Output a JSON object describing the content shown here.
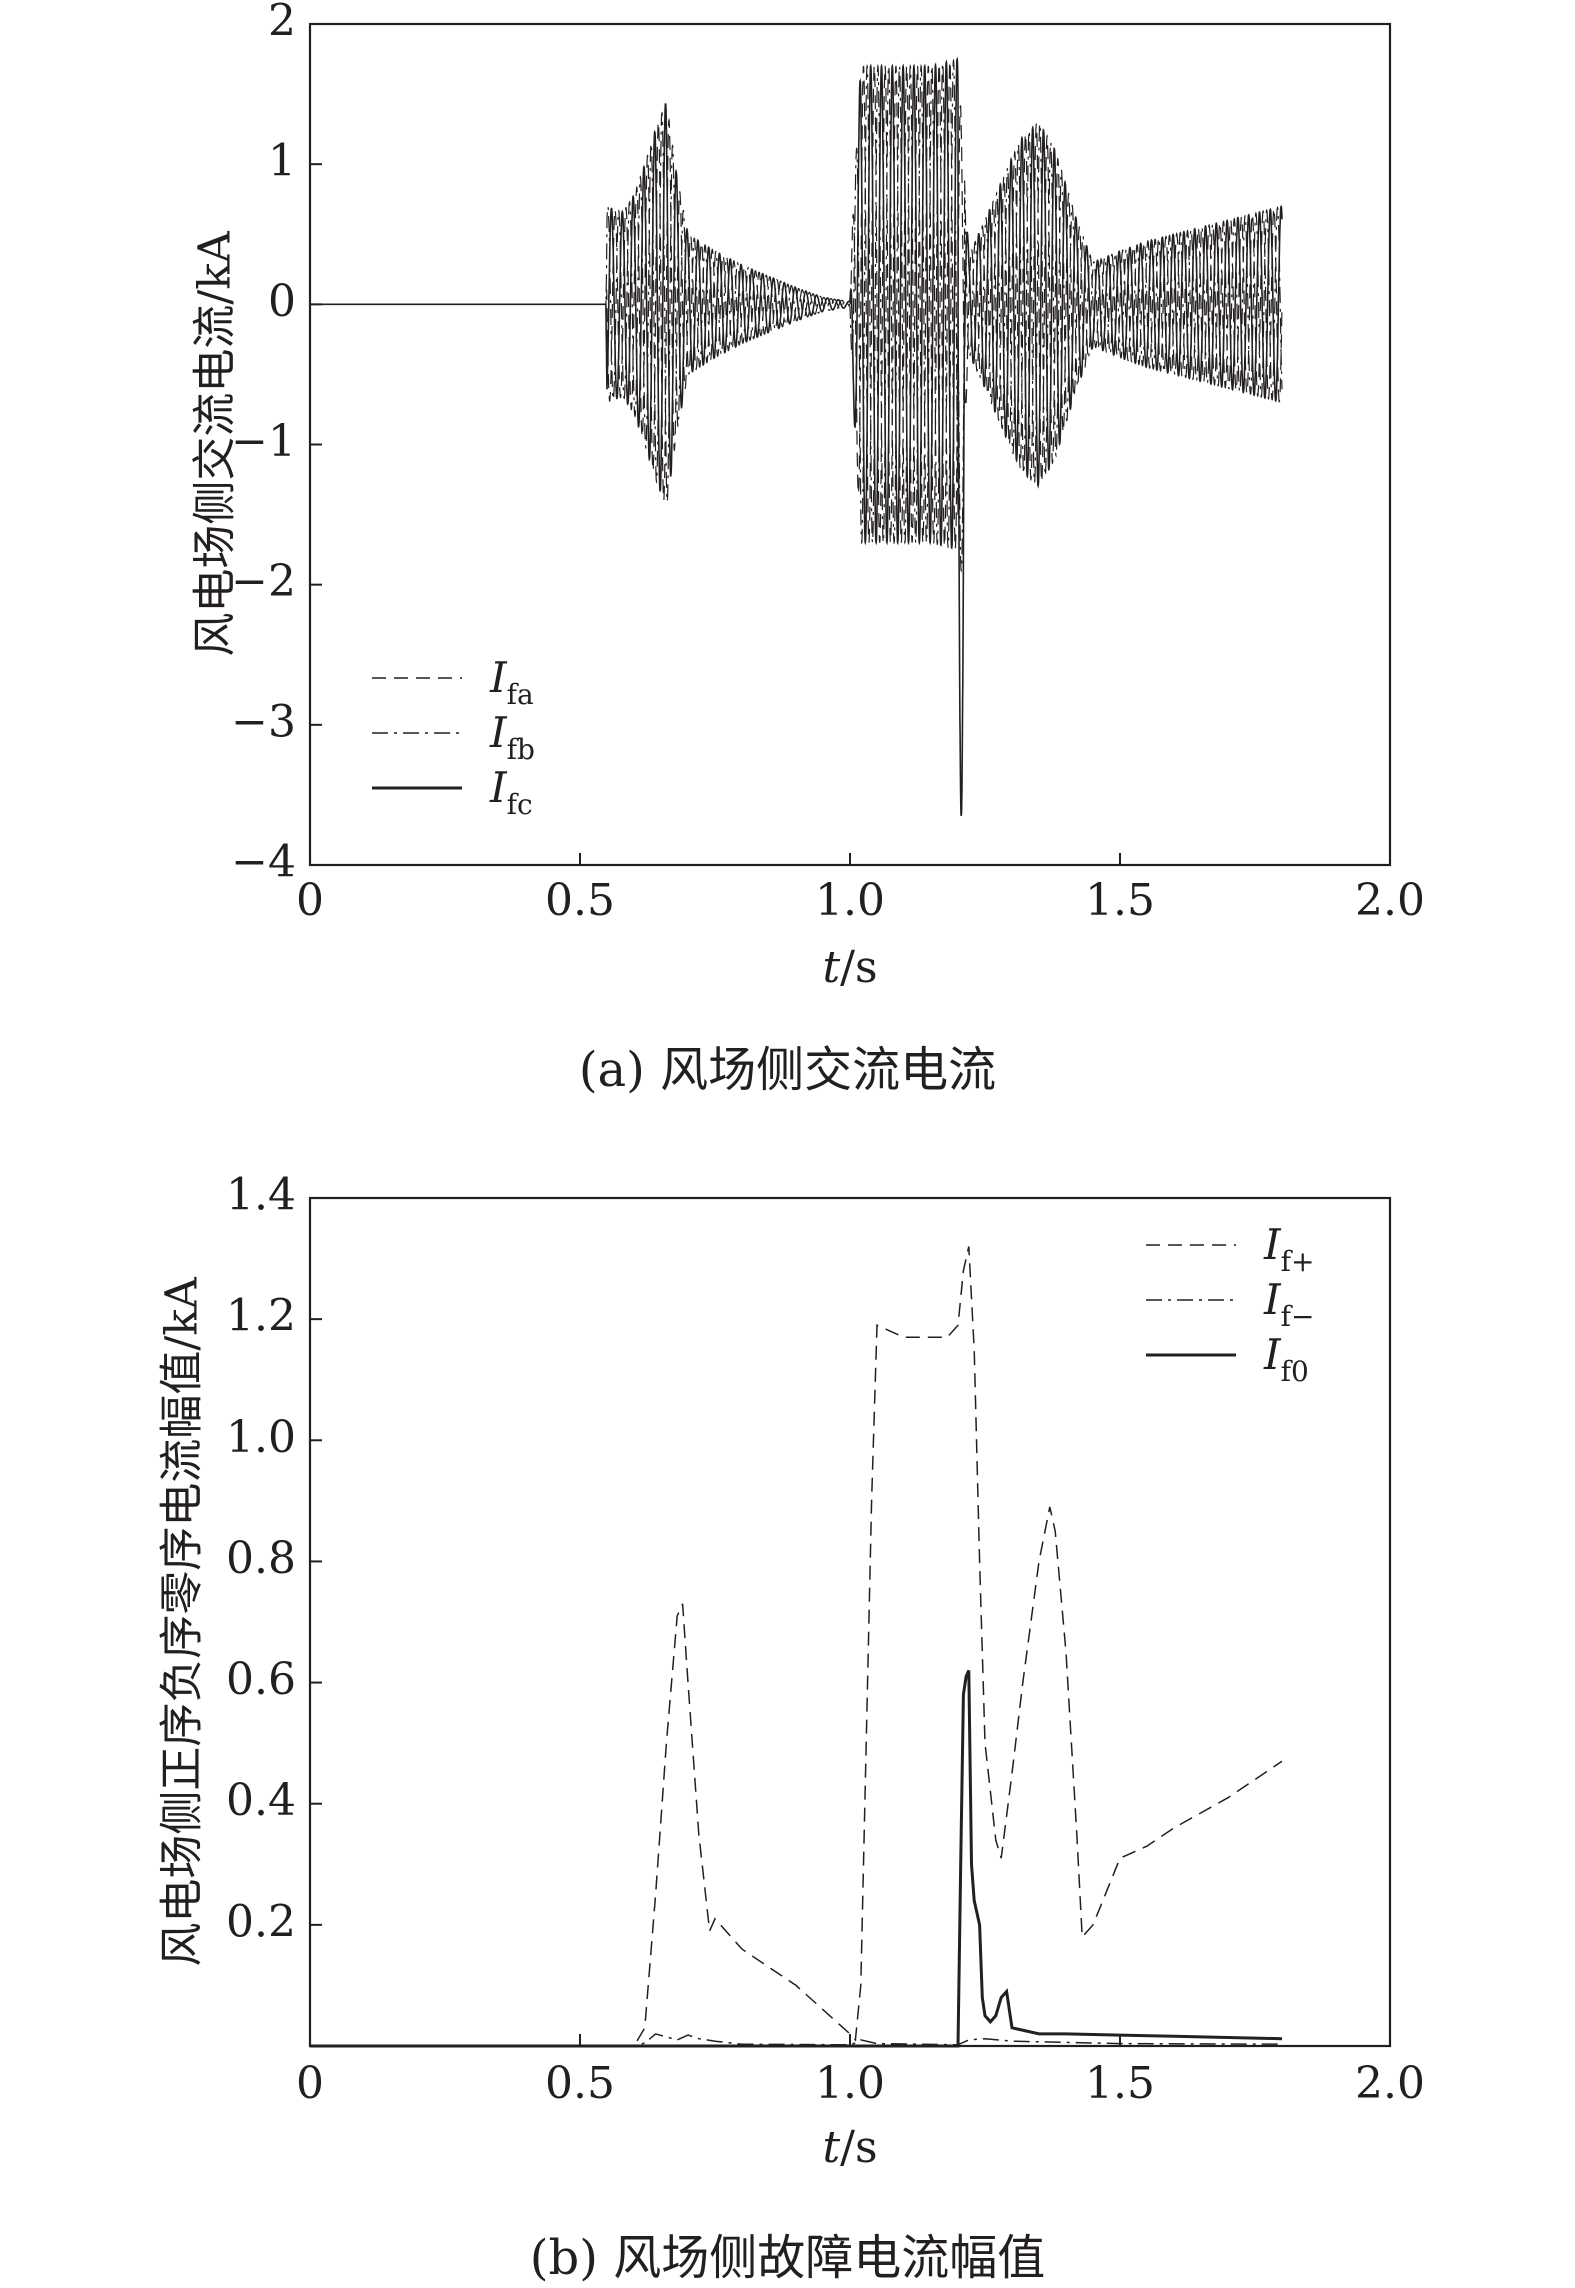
{
  "chart_data": [
    {
      "type": "line",
      "caption": "(a) 风场侧交流电流",
      "xlabel_italic": "t",
      "xlabel_rest": "/s",
      "ylabel": "风电场侧交流电流/kA",
      "xlim": [
        0,
        2.0
      ],
      "ylim": [
        -4,
        2
      ],
      "xticks": [
        "0",
        "0.5",
        "1.0",
        "1.5",
        "2.0"
      ],
      "xtick_values": [
        0,
        0.5,
        1.0,
        1.5,
        2.0
      ],
      "yticks": [
        "−4",
        "−3",
        "−2",
        "−1",
        "0",
        "1",
        "2"
      ],
      "ytick_values": [
        -4,
        -3,
        -2,
        -1,
        0,
        1,
        2
      ],
      "grid": false,
      "legend_position": "bottom-left",
      "series": [
        {
          "name_main": "I",
          "name_sub": "fa",
          "style": "dashed",
          "phase_deg": 0
        },
        {
          "name_main": "I",
          "name_sub": "fb",
          "style": "dashdot",
          "phase_deg": 120
        },
        {
          "name_main": "I",
          "name_sub": "fc",
          "style": "solid",
          "phase_deg": 240
        }
      ],
      "envelope": {
        "t": [
          0,
          0.548,
          0.55,
          0.56,
          0.58,
          0.6,
          0.62,
          0.64,
          0.66,
          0.68,
          0.7,
          0.75,
          0.8,
          0.85,
          0.9,
          0.95,
          1.0,
          1.005,
          1.02,
          1.05,
          1.1,
          1.15,
          1.2,
          1.22,
          1.25,
          1.3,
          1.32,
          1.35,
          1.38,
          1.42,
          1.45,
          1.5,
          1.55,
          1.6,
          1.7,
          1.8
        ],
        "amp": [
          0,
          0,
          0.7,
          0.68,
          0.66,
          0.78,
          1.0,
          1.25,
          1.45,
          0.9,
          0.5,
          0.38,
          0.28,
          0.2,
          0.12,
          0.05,
          0.02,
          0.6,
          1.7,
          1.7,
          1.7,
          1.7,
          1.75,
          0.35,
          0.6,
          1.05,
          1.2,
          1.3,
          1.1,
          0.6,
          0.3,
          0.38,
          0.45,
          0.5,
          0.6,
          0.7
        ]
      },
      "spike": {
        "t": 1.205,
        "value": -3.65
      }
    },
    {
      "type": "line",
      "caption": "(b) 风场侧故障电流幅值",
      "xlabel_italic": "t",
      "xlabel_rest": "/s",
      "ylabel": "风电场侧正序负序零序电流幅值/kA",
      "xlim": [
        0,
        2.0
      ],
      "ylim": [
        0,
        1.4
      ],
      "xticks": [
        "0",
        "0.5",
        "1.0",
        "1.5",
        "2.0"
      ],
      "xtick_values": [
        0,
        0.5,
        1.0,
        1.5,
        2.0
      ],
      "yticks": [
        "0.2",
        "0.4",
        "0.6",
        "0.8",
        "1.0",
        "1.2",
        "1.4"
      ],
      "ytick_values": [
        0.2,
        0.4,
        0.6,
        0.8,
        1.0,
        1.2,
        1.4
      ],
      "grid": false,
      "legend_position": "top-right",
      "series": [
        {
          "name_main": "I",
          "name_sub": "f+",
          "style": "dashed",
          "x": [
            0,
            0.6,
            0.62,
            0.64,
            0.66,
            0.68,
            0.69,
            0.7,
            0.72,
            0.74,
            0.75,
            0.8,
            0.9,
            0.95,
            1.0,
            1.01,
            1.02,
            1.04,
            1.05,
            1.1,
            1.15,
            1.18,
            1.2,
            1.21,
            1.22,
            1.23,
            1.24,
            1.25,
            1.27,
            1.28,
            1.3,
            1.32,
            1.35,
            1.37,
            1.38,
            1.4,
            1.42,
            1.43,
            1.45,
            1.5,
            1.55,
            1.6,
            1.7,
            1.8
          ],
          "y": [
            0,
            0,
            0.03,
            0.25,
            0.5,
            0.71,
            0.73,
            0.6,
            0.35,
            0.19,
            0.21,
            0.16,
            0.1,
            0.06,
            0.02,
            0.01,
            0.1,
            0.9,
            1.19,
            1.17,
            1.17,
            1.17,
            1.19,
            1.28,
            1.32,
            1.15,
            0.8,
            0.5,
            0.34,
            0.31,
            0.45,
            0.6,
            0.8,
            0.89,
            0.85,
            0.65,
            0.35,
            0.18,
            0.2,
            0.31,
            0.33,
            0.36,
            0.41,
            0.47
          ]
        },
        {
          "name_main": "I",
          "name_sub": "f−",
          "style": "dashdot",
          "x": [
            0,
            0.6,
            0.62,
            0.64,
            0.66,
            0.68,
            0.7,
            0.72,
            0.75,
            0.8,
            1.0,
            1.01,
            1.02,
            1.05,
            1.2,
            1.22,
            1.25,
            1.3,
            1.4,
            1.5,
            1.8
          ],
          "y": [
            0,
            0,
            0.005,
            0.02,
            0.015,
            0.01,
            0.018,
            0.012,
            0.008,
            0.003,
            0.002,
            0.005,
            0.01,
            0.004,
            0.002,
            0.01,
            0.012,
            0.008,
            0.006,
            0.004,
            0.003
          ]
        },
        {
          "name_main": "I",
          "name_sub": "f0",
          "style": "solid",
          "x": [
            0,
            1.2,
            1.205,
            1.21,
            1.215,
            1.22,
            1.225,
            1.23,
            1.235,
            1.24,
            1.245,
            1.25,
            1.26,
            1.27,
            1.28,
            1.29,
            1.3,
            1.35,
            1.4,
            1.5,
            1.6,
            1.7,
            1.8
          ],
          "y": [
            0,
            0,
            0.3,
            0.58,
            0.61,
            0.62,
            0.3,
            0.24,
            0.22,
            0.2,
            0.08,
            0.05,
            0.04,
            0.05,
            0.08,
            0.09,
            0.03,
            0.02,
            0.02,
            0.018,
            0.016,
            0.014,
            0.012
          ]
        }
      ]
    }
  ]
}
